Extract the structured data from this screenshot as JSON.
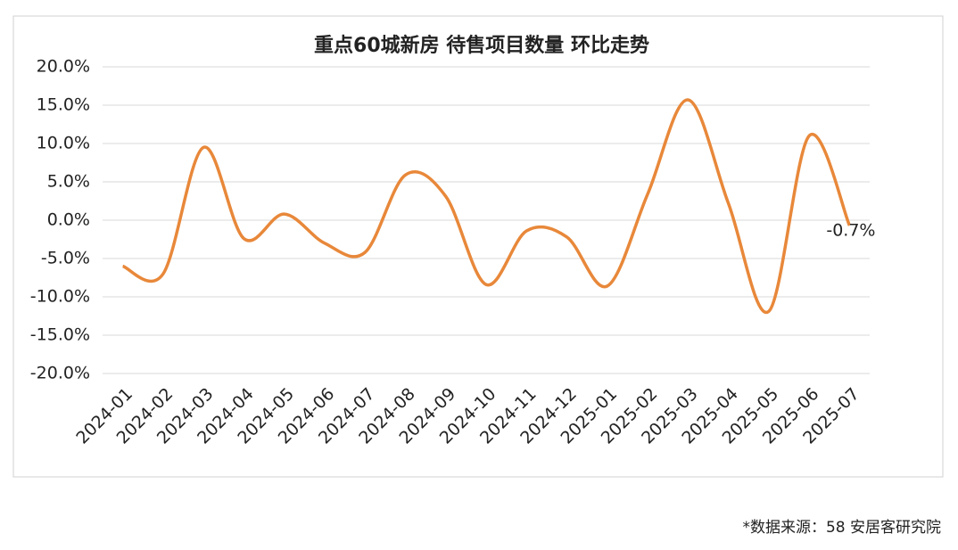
{
  "chart_data": {
    "type": "line",
    "title": "重点60城新房 待售项目数量 环比走势",
    "categories": [
      "2024-01",
      "2024-02",
      "2024-03",
      "2024-04",
      "2024-05",
      "2024-06",
      "2024-07",
      "2024-08",
      "2024-09",
      "2024-10",
      "2024-11",
      "2024-12",
      "2025-01",
      "2025-02",
      "2025-03",
      "2025-04",
      "2025-05",
      "2025-06",
      "2025-07"
    ],
    "values": [
      -6.0,
      -7.0,
      9.5,
      -2.4,
      0.8,
      -3.0,
      -4.2,
      5.9,
      3.1,
      -8.4,
      -1.4,
      -2.2,
      -8.6,
      3.4,
      15.7,
      2.2,
      -11.9,
      11.0,
      -0.7
    ],
    "value_labels": [
      null,
      null,
      null,
      null,
      null,
      null,
      null,
      null,
      null,
      null,
      null,
      null,
      null,
      null,
      null,
      null,
      null,
      null,
      "-0.7%"
    ],
    "color": "#e8883a",
    "smooth": true,
    "grid": true,
    "ylim": [
      -20,
      20
    ],
    "yticks": [
      {
        "value": -20,
        "label": "-20.0%"
      },
      {
        "value": -15,
        "label": "-15.0%"
      },
      {
        "value": -10,
        "label": "-10.0%"
      },
      {
        "value": -5,
        "label": "-5.0%"
      },
      {
        "value": 0,
        "label": "0.0%"
      },
      {
        "value": 5,
        "label": "5.0%"
      },
      {
        "value": 10,
        "label": "10.0%"
      },
      {
        "value": 15,
        "label": "15.0%"
      },
      {
        "value": 20,
        "label": "20.0%"
      }
    ]
  },
  "footnote": "*数据来源：58 安居客研究院"
}
